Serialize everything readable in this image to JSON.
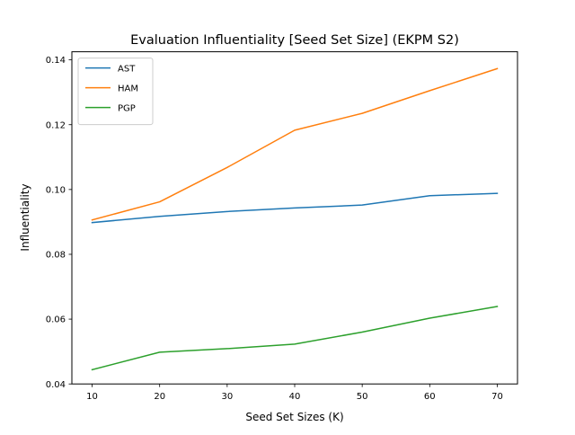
{
  "chart_data": {
    "type": "line",
    "title": "Evaluation Influentiality [Seed Set Size] (EKPM S2)",
    "xlabel": "Seed Set Sizes (K)",
    "ylabel": "Influentiality",
    "x": [
      10,
      20,
      30,
      40,
      50,
      60,
      70
    ],
    "xlim": [
      7,
      73
    ],
    "ylim": [
      0.04,
      0.1425
    ],
    "xticks": [
      "10",
      "20",
      "30",
      "40",
      "50",
      "60",
      "70"
    ],
    "yticks": [
      "0.04",
      "0.06",
      "0.08",
      "0.10",
      "0.12",
      "0.14"
    ],
    "grid": false,
    "legend_position": "upper-left",
    "series": [
      {
        "name": "AST",
        "color": "#1f77b4",
        "values": [
          0.0898,
          0.0917,
          0.0932,
          0.0943,
          0.0952,
          0.0981,
          0.0988
        ]
      },
      {
        "name": "HAM",
        "color": "#ff7f0e",
        "values": [
          0.0906,
          0.0962,
          0.1068,
          0.1183,
          0.1235,
          0.1305,
          0.1373
        ]
      },
      {
        "name": "PGP",
        "color": "#2ca02c",
        "values": [
          0.0444,
          0.0498,
          0.0509,
          0.0523,
          0.056,
          0.0603,
          0.0639
        ]
      }
    ]
  }
}
